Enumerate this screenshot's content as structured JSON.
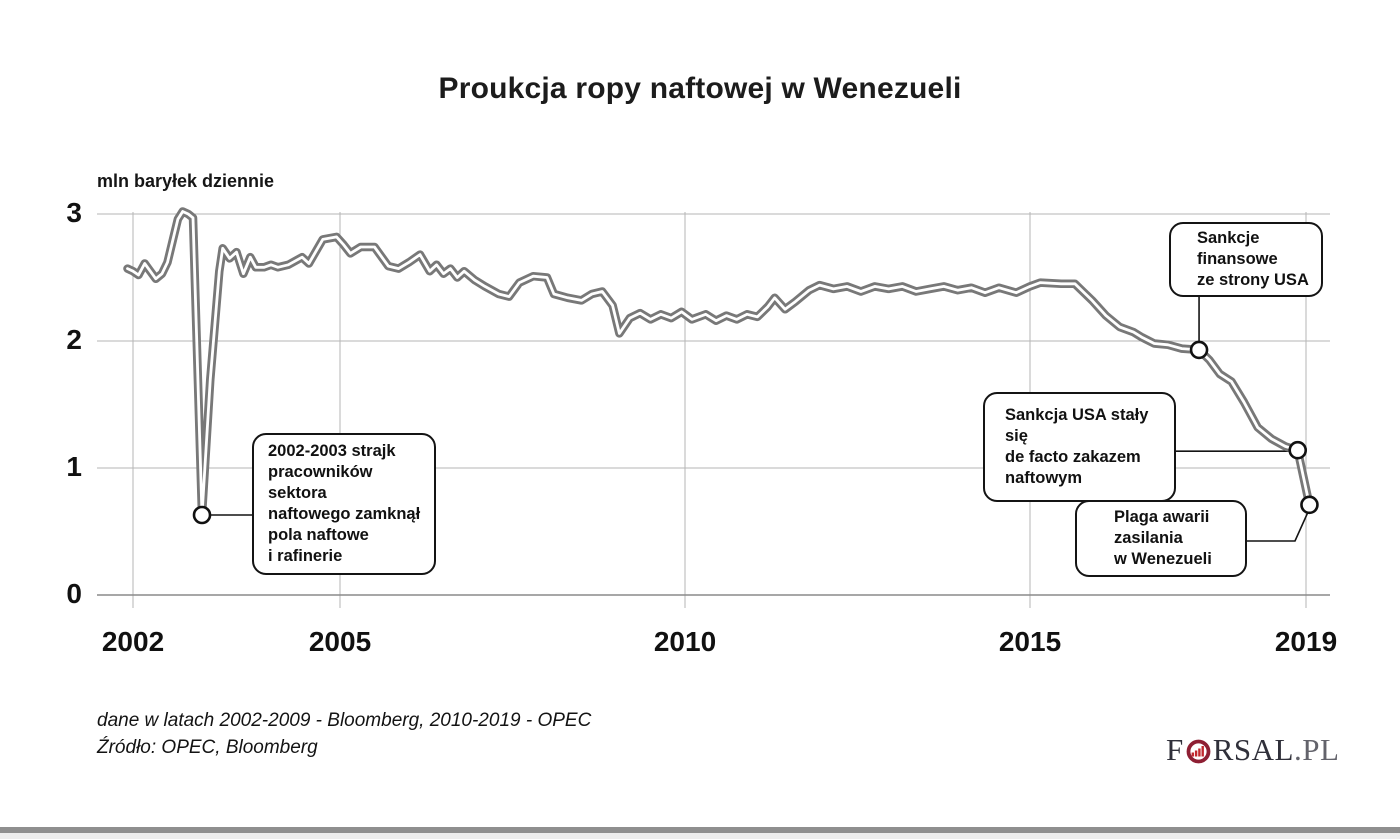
{
  "title": "Proukcja ropy naftowej w Wenezueli",
  "y_axis_label": "mln baryłek dziennie",
  "annotations": [
    {
      "id": "strike",
      "text": "2002-2003 strajk\npracowników sektora\nnaftowego zamknął\npola naftowe\ni rafinerie"
    },
    {
      "id": "sanctions-financial",
      "text": "Sankcje\nfinansowe\nze strony USA"
    },
    {
      "id": "sanctions-ban",
      "text": "Sankcja USA stały się\nde facto zakazem\nnaftowym"
    },
    {
      "id": "blackouts",
      "text": "Plaga awarii\nzasilania\nw Wenezueli"
    }
  ],
  "footer": {
    "line1": "dane w latach 2002-2009 - Bloomberg, 2010-2019 - OPEC",
    "line2": "Źródło: OPEC, Bloomberg"
  },
  "logo": {
    "prefix": "F",
    "letters": "RSAL",
    "domain": ".PL",
    "ring_color": "#8e1f33",
    "bar_color": "#c1272d"
  },
  "chart_data": {
    "type": "line",
    "title": "Proukcja ropy naftowej w Wenezueli",
    "ylabel": "mln baryłek dziennie",
    "xlim": [
      2001.9,
      2019.35
    ],
    "ylim": [
      0,
      3
    ],
    "grid": true,
    "legend": false,
    "line_color": "#787878",
    "grid_color": "#b5b5b5",
    "axis_color": "#8a8a8a",
    "xticks": [
      2002,
      2005,
      2010,
      2015,
      2019
    ],
    "yticks": [
      0,
      1,
      2,
      3
    ],
    "series": [
      {
        "name": "produkcja ropy (mln baryłek dziennie)",
        "points": [
          [
            2001.92,
            2.57
          ],
          [
            2002.0,
            2.55
          ],
          [
            2002.08,
            2.52
          ],
          [
            2002.17,
            2.61
          ],
          [
            2002.25,
            2.55
          ],
          [
            2002.33,
            2.49
          ],
          [
            2002.42,
            2.53
          ],
          [
            2002.5,
            2.62
          ],
          [
            2002.58,
            2.8
          ],
          [
            2002.65,
            2.96
          ],
          [
            2002.72,
            3.02
          ],
          [
            2002.8,
            3.0
          ],
          [
            2002.87,
            2.97
          ],
          [
            2003.0,
            0.63
          ],
          [
            2003.12,
            1.7
          ],
          [
            2003.25,
            2.55
          ],
          [
            2003.3,
            2.73
          ],
          [
            2003.4,
            2.65
          ],
          [
            2003.5,
            2.7
          ],
          [
            2003.6,
            2.53
          ],
          [
            2003.7,
            2.66
          ],
          [
            2003.78,
            2.58
          ],
          [
            2003.9,
            2.58
          ],
          [
            2004.0,
            2.6
          ],
          [
            2004.1,
            2.58
          ],
          [
            2004.25,
            2.6
          ],
          [
            2004.45,
            2.66
          ],
          [
            2004.55,
            2.61
          ],
          [
            2004.75,
            2.8
          ],
          [
            2004.95,
            2.82
          ],
          [
            2005.05,
            2.76
          ],
          [
            2005.15,
            2.69
          ],
          [
            2005.3,
            2.74
          ],
          [
            2005.5,
            2.74
          ],
          [
            2005.7,
            2.59
          ],
          [
            2005.85,
            2.57
          ],
          [
            2006.0,
            2.62
          ],
          [
            2006.16,
            2.68
          ],
          [
            2006.3,
            2.55
          ],
          [
            2006.4,
            2.6
          ],
          [
            2006.5,
            2.53
          ],
          [
            2006.6,
            2.57
          ],
          [
            2006.7,
            2.5
          ],
          [
            2006.8,
            2.55
          ],
          [
            2006.95,
            2.48
          ],
          [
            2007.1,
            2.43
          ],
          [
            2007.3,
            2.37
          ],
          [
            2007.45,
            2.35
          ],
          [
            2007.6,
            2.46
          ],
          [
            2007.8,
            2.51
          ],
          [
            2008.0,
            2.5
          ],
          [
            2008.1,
            2.37
          ],
          [
            2008.3,
            2.34
          ],
          [
            2008.5,
            2.32
          ],
          [
            2008.65,
            2.37
          ],
          [
            2008.8,
            2.39
          ],
          [
            2008.95,
            2.28
          ],
          [
            2009.05,
            2.06
          ],
          [
            2009.2,
            2.18
          ],
          [
            2009.35,
            2.22
          ],
          [
            2009.5,
            2.17
          ],
          [
            2009.65,
            2.21
          ],
          [
            2009.8,
            2.18
          ],
          [
            2009.95,
            2.23
          ],
          [
            2010.1,
            2.17
          ],
          [
            2010.3,
            2.21
          ],
          [
            2010.45,
            2.16
          ],
          [
            2010.6,
            2.2
          ],
          [
            2010.75,
            2.17
          ],
          [
            2010.9,
            2.21
          ],
          [
            2011.05,
            2.19
          ],
          [
            2011.2,
            2.27
          ],
          [
            2011.3,
            2.34
          ],
          [
            2011.45,
            2.25
          ],
          [
            2011.6,
            2.31
          ],
          [
            2011.8,
            2.4
          ],
          [
            2011.95,
            2.44
          ],
          [
            2012.15,
            2.41
          ],
          [
            2012.35,
            2.43
          ],
          [
            2012.55,
            2.39
          ],
          [
            2012.75,
            2.43
          ],
          [
            2012.95,
            2.41
          ],
          [
            2013.15,
            2.43
          ],
          [
            2013.35,
            2.39
          ],
          [
            2013.55,
            2.41
          ],
          [
            2013.75,
            2.43
          ],
          [
            2013.95,
            2.4
          ],
          [
            2014.15,
            2.42
          ],
          [
            2014.35,
            2.38
          ],
          [
            2014.55,
            2.42
          ],
          [
            2014.8,
            2.38
          ],
          [
            2015.0,
            2.43
          ],
          [
            2015.15,
            2.46
          ],
          [
            2015.45,
            2.45
          ],
          [
            2015.65,
            2.45
          ],
          [
            2015.9,
            2.32
          ],
          [
            2016.1,
            2.2
          ],
          [
            2016.3,
            2.11
          ],
          [
            2016.5,
            2.07
          ],
          [
            2016.62,
            2.03
          ],
          [
            2016.8,
            1.98
          ],
          [
            2017.0,
            1.97
          ],
          [
            2017.2,
            1.94
          ],
          [
            2017.45,
            1.93
          ],
          [
            2017.6,
            1.85
          ],
          [
            2017.75,
            1.74
          ],
          [
            2017.92,
            1.68
          ],
          [
            2018.1,
            1.52
          ],
          [
            2018.3,
            1.32
          ],
          [
            2018.5,
            1.23
          ],
          [
            2018.7,
            1.17
          ],
          [
            2018.88,
            1.14
          ],
          [
            2019.05,
            0.71
          ],
          [
            2019.1,
            0.68
          ]
        ]
      }
    ],
    "markers": [
      {
        "x": 2003.0,
        "y": 0.63,
        "annotation": "strike"
      },
      {
        "x": 2017.45,
        "y": 1.93,
        "annotation": "sanctions-financial"
      },
      {
        "x": 2018.88,
        "y": 1.14,
        "annotation": "sanctions-ban"
      },
      {
        "x": 2019.05,
        "y": 0.71,
        "annotation": "blackouts"
      }
    ]
  }
}
